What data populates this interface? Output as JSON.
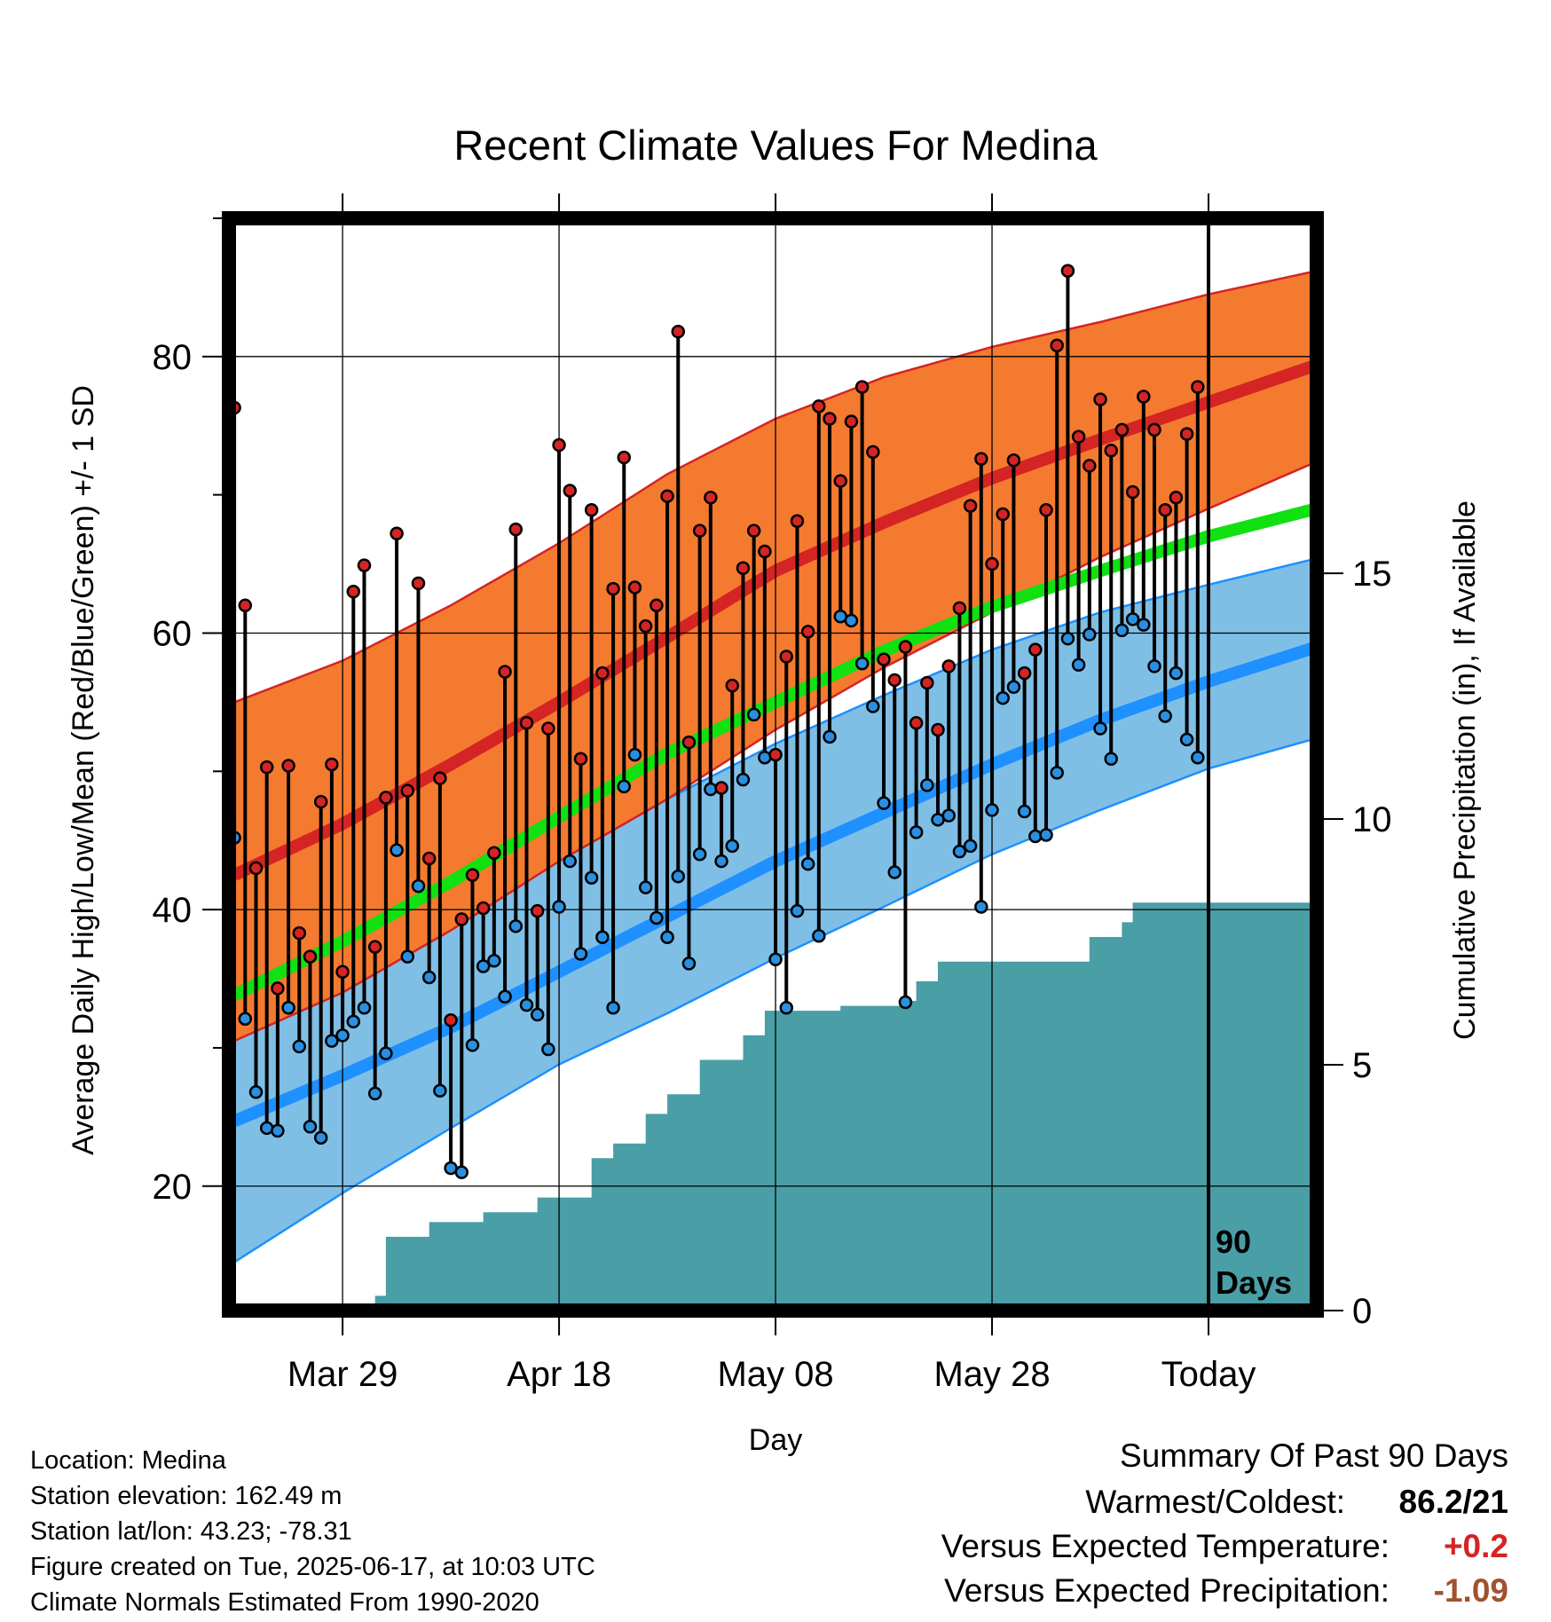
{
  "chart_data": {
    "type": "line",
    "title": "Recent Climate Values For Medina",
    "xlabel": "Day",
    "ylabel": "Average Daily High/Low/Mean (Red/Blue/Green) +/- 1 SD",
    "y2label": "Cumulative Precipitation (in), If Available",
    "x_ticks": [
      "Mar 29",
      "Apr 18",
      "May 08",
      "May 28",
      "Today"
    ],
    "x_tick_days": [
      10,
      30,
      50,
      70,
      90
    ],
    "xlim": [
      -0.5,
      100
    ],
    "ylim": [
      11,
      90
    ],
    "y_ticks": [
      20,
      40,
      60,
      80
    ],
    "y2lim": [
      0,
      20
    ],
    "y2_ticks": [
      0,
      5,
      10,
      15
    ],
    "today_label": "90\nDays",
    "grid": true,
    "colors": {
      "high_band": "#f47a30",
      "high_mean": "#d42424",
      "low_band": "#7fbfe6",
      "low_mean": "#1e90ff",
      "mean_line": "#11e011",
      "precip": "#4a9ea6",
      "high_dot": "#d42424",
      "low_dot": "#2a8fe0"
    },
    "normals": {
      "day": [
        0,
        10,
        20,
        30,
        40,
        50,
        60,
        70,
        80,
        90,
        100
      ],
      "high_upper": [
        55,
        58,
        62,
        66.5,
        71.5,
        75.5,
        78.5,
        80.7,
        82.5,
        84.5,
        86.2
      ],
      "high_mean": [
        42.5,
        46.2,
        50.5,
        55,
        59.7,
        64.5,
        68,
        71.2,
        74,
        76.7,
        79.4
      ],
      "high_lower": [
        30.5,
        34,
        38.5,
        43.5,
        48,
        53,
        57.5,
        61.5,
        65.5,
        69,
        72.4
      ],
      "mean": [
        33.8,
        37.7,
        42,
        46.7,
        51.3,
        55,
        58.7,
        61.9,
        64.5,
        67,
        69
      ],
      "low_upper": [
        31,
        34.5,
        39,
        43.5,
        48,
        52,
        55.5,
        58.8,
        61.5,
        63.5,
        65.4
      ],
      "low_mean": [
        24.7,
        28,
        31.5,
        35.5,
        39.5,
        43.5,
        47,
        50.5,
        53.7,
        56.5,
        59
      ],
      "low_lower": [
        14.5,
        19.5,
        24.2,
        28.8,
        32.5,
        36.5,
        40.2,
        44,
        47.2,
        50.2,
        52.4
      ]
    },
    "series": [
      {
        "name": "High",
        "values": [
          76.3,
          62,
          43,
          50.3,
          34.3,
          50.4,
          38.3,
          36.6,
          47.8,
          50.5,
          35.5,
          63,
          64.9,
          37.3,
          48.1,
          67.2,
          48.6,
          63.6,
          43.7,
          49.5,
          32,
          39.3,
          42.5,
          40.1,
          44.1,
          57.2,
          67.5,
          53.5,
          39.9,
          53.1,
          73.6,
          70.3,
          50.9,
          68.9,
          57.1,
          63.2,
          72.7,
          63.3,
          60.5,
          62,
          69.9,
          81.8,
          52.1,
          67.4,
          69.8,
          48.8,
          56.2,
          64.7,
          67.4,
          65.9,
          51.2,
          58.3,
          68.1,
          60.1,
          76.4,
          75.5,
          71,
          75.3,
          77.8,
          73.1,
          58.1,
          56.6,
          59,
          53.5,
          56.4,
          53,
          57.6,
          61.8,
          69.2,
          72.6,
          65,
          68.6,
          72.5,
          57.1,
          58.8,
          68.9,
          80.8,
          86.2,
          74.2,
          72.1,
          76.9,
          73.2,
          74.7,
          70.2,
          77.1,
          74.7,
          68.9,
          69.8,
          74.4,
          77.8
        ]
      },
      {
        "name": "Low",
        "values": [
          45.2,
          32.1,
          26.8,
          24.2,
          24,
          32.9,
          30.1,
          24.3,
          23.5,
          30.5,
          30.9,
          31.9,
          32.9,
          26.7,
          29.6,
          44.3,
          36.6,
          41.7,
          35.1,
          26.9,
          21.3,
          21,
          30.2,
          35.9,
          36.3,
          33.7,
          38.8,
          33.1,
          32.4,
          29.9,
          40.2,
          43.5,
          36.8,
          42.3,
          38,
          32.9,
          48.9,
          51.2,
          41.6,
          39.4,
          38,
          42.4,
          36.1,
          44,
          48.7,
          43.5,
          44.6,
          49.4,
          54.1,
          51,
          36.4,
          32.9,
          39.9,
          43.3,
          38.1,
          52.5,
          61.2,
          60.9,
          57.8,
          54.7,
          47.7,
          42.7,
          33.3,
          45.6,
          49,
          46.5,
          46.8,
          44.2,
          44.6,
          40.2,
          47.2,
          55.3,
          56.1,
          47.1,
          45.3,
          45.4,
          49.9,
          59.6,
          57.7,
          59.9,
          53.1,
          50.9,
          60.2,
          61,
          60.6,
          57.6,
          54,
          57.1,
          52.3,
          51
        ]
      },
      {
        "name": "Cumulative Precipitation",
        "x": [
          0,
          9,
          10,
          13,
          14,
          18,
          23,
          28,
          33,
          35,
          38,
          40,
          43,
          44,
          47,
          49,
          51,
          56,
          62,
          63,
          65,
          79,
          82,
          83,
          100
        ],
        "values": [
          0,
          0,
          0.1,
          0.3,
          1.5,
          1.8,
          2,
          2.3,
          3.1,
          3.4,
          4,
          4.4,
          5.1,
          5.1,
          5.6,
          6.1,
          6.1,
          6.2,
          6.3,
          6.7,
          7.1,
          7.6,
          7.9,
          8.3,
          8.3
        ]
      }
    ]
  },
  "info": {
    "location": "Location: Medina",
    "elevation": "Station elevation: 162.49 m",
    "latlon": "Station lat/lon: 43.23; -78.31",
    "created": "Figure created on Tue, 2025-06-17, at 10:03 UTC",
    "normals": "Climate Normals Estimated From 1990-2020"
  },
  "summary": {
    "title": "Summary Of Past 90 Days",
    "warmest_label": "Warmest/Coldest:",
    "warmest_value": "86.2/21",
    "temp_label": "Versus Expected Temperature:",
    "temp_value": "+0.2",
    "temp_color": "#d42424",
    "precip_label": "Versus Expected Precipitation:",
    "precip_value": "-1.09",
    "precip_color": "#a0522d"
  }
}
